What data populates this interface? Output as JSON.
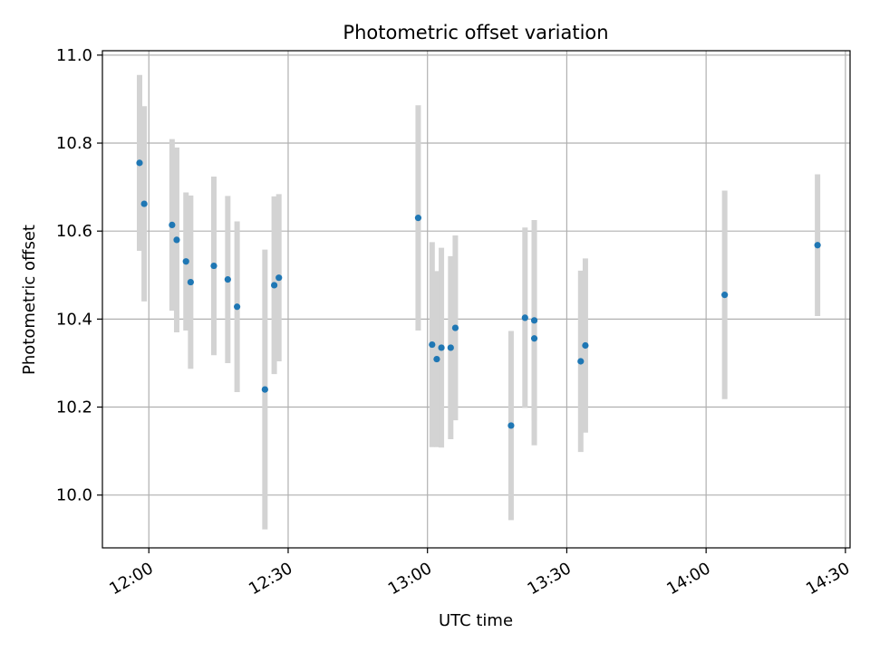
{
  "chart_data": {
    "type": "scatter",
    "title": "Photometric offset variation",
    "xlabel": "UTC time",
    "ylabel": "Photometric offset",
    "x_ticks": [
      "12:00",
      "12:30",
      "13:00",
      "13:30",
      "14:00",
      "14:30"
    ],
    "y_ticks": [
      "10.0",
      "10.2",
      "10.4",
      "10.6",
      "10.8",
      "11.0"
    ],
    "xlim": [
      "11:50",
      "14:31"
    ],
    "ylim": [
      9.88,
      11.01
    ],
    "grid": true,
    "colors": {
      "point": "#1f77b4",
      "errorbar": "#d3d3d3",
      "grid": "#b0b0b0"
    },
    "series": [
      {
        "points": [
          {
            "x": "11:58",
            "y": 10.755,
            "err": 0.2
          },
          {
            "x": "11:59",
            "y": 10.662,
            "err": 0.222
          },
          {
            "x": "12:05",
            "y": 10.614,
            "err": 0.195
          },
          {
            "x": "12:06",
            "y": 10.58,
            "err": 0.21
          },
          {
            "x": "12:08",
            "y": 10.531,
            "err": 0.157
          },
          {
            "x": "12:09",
            "y": 10.484,
            "err": 0.197
          },
          {
            "x": "12:14",
            "y": 10.521,
            "err": 0.203
          },
          {
            "x": "12:17",
            "y": 10.49,
            "err": 0.19
          },
          {
            "x": "12:19",
            "y": 10.428,
            "err": 0.194
          },
          {
            "x": "12:25",
            "y": 10.24,
            "err": 0.318
          },
          {
            "x": "12:27",
            "y": 10.477,
            "err": 0.202
          },
          {
            "x": "12:28",
            "y": 10.494,
            "err": 0.19
          },
          {
            "x": "12:58",
            "y": 10.63,
            "err": 0.256
          },
          {
            "x": "13:01",
            "y": 10.342,
            "err": 0.233
          },
          {
            "x": "13:02",
            "y": 10.309,
            "err": 0.2
          },
          {
            "x": "13:03",
            "y": 10.335,
            "err": 0.227
          },
          {
            "x": "13:05",
            "y": 10.335,
            "err": 0.208
          },
          {
            "x": "13:06",
            "y": 10.38,
            "err": 0.21
          },
          {
            "x": "13:18",
            "y": 10.158,
            "err": 0.215
          },
          {
            "x": "13:21",
            "y": 10.403,
            "err": 0.205
          },
          {
            "x": "13:23",
            "y": 10.397,
            "err": 0.228
          },
          {
            "x": "13:23",
            "y": 10.356,
            "err": 0.243
          },
          {
            "x": "13:33",
            "y": 10.304,
            "err": 0.206
          },
          {
            "x": "13:34",
            "y": 10.34,
            "err": 0.198
          },
          {
            "x": "14:04",
            "y": 10.455,
            "err": 0.237
          },
          {
            "x": "14:24",
            "y": 10.568,
            "err": 0.161
          }
        ]
      }
    ]
  }
}
